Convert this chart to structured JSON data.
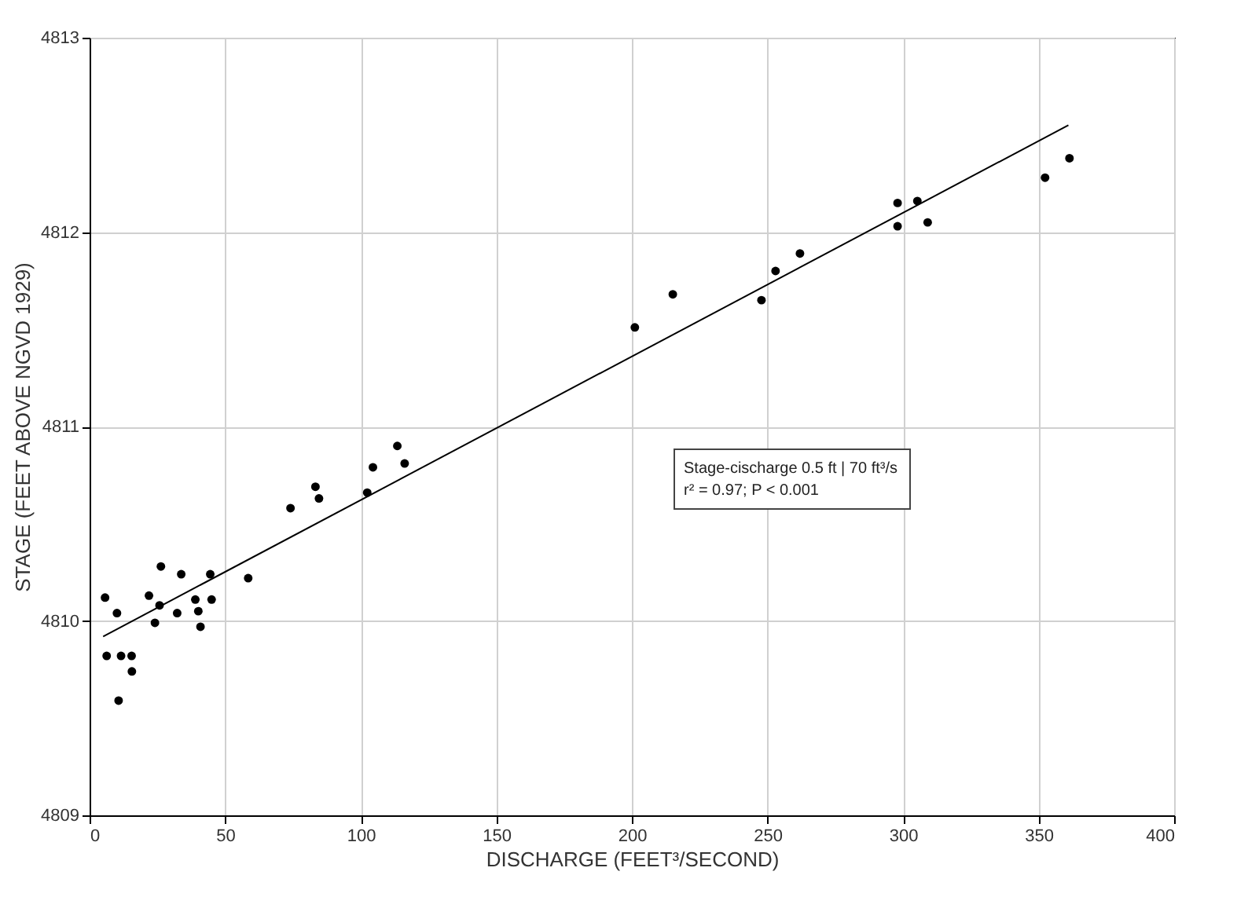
{
  "chart_data": {
    "type": "scatter",
    "xlabel": "DISCHARGE (FEET³/SECOND)",
    "ylabel": "STAGE (FEET ABOVE NGVD 1929)",
    "xlim": [
      0,
      400
    ],
    "xticks": [
      0,
      50,
      100,
      150,
      200,
      250,
      300,
      350,
      400
    ],
    "ylim": [
      4809,
      4813
    ],
    "yticks": [
      4809,
      4810,
      4811,
      4812,
      4813
    ],
    "grid": true,
    "annotations": [
      "Stage-cischarge  0.5 ft | 70 ft³/s",
      "r² = 0.97; P < 0.001"
    ],
    "series": [
      {
        "color": "#000000",
        "marker": "circle",
        "x": [
          5.7,
          10.1,
          6.3,
          11.6,
          15.5,
          15.6,
          10.7,
          21.9,
          26.3,
          25.8,
          24.1,
          33.8,
          32.3,
          39,
          40.1,
          40.9,
          44.5,
          45,
          58.5,
          74.1,
          83.3,
          84.6,
          102.4,
          104.5,
          113.5,
          116.2,
          201.1,
          215.1,
          247.8,
          253,
          262,
          298,
          298,
          305.3,
          309.1,
          352.4,
          361.4
        ],
        "values": [
          4810.12,
          4810.04,
          4809.82,
          4809.82,
          4809.82,
          4809.74,
          4809.59,
          4810.13,
          4810.28,
          4810.08,
          4809.99,
          4810.24,
          4810.04,
          4810.11,
          4810.05,
          4809.97,
          4810.24,
          4810.11,
          4810.22,
          4810.58,
          4810.69,
          4810.63,
          4810.66,
          4810.79,
          4810.9,
          4810.81,
          4811.51,
          4811.68,
          4811.65,
          4811.8,
          4811.89,
          4812.15,
          4812.03,
          4812.16,
          4812.05,
          4812.28,
          4812.38
        ]
      },
      {
        "type": "line",
        "color": "#000000",
        "marker": "none",
        "line_style": "solid",
        "x": [
          5,
          361
        ],
        "values": [
          4809.92,
          4812.55
        ]
      }
    ]
  }
}
